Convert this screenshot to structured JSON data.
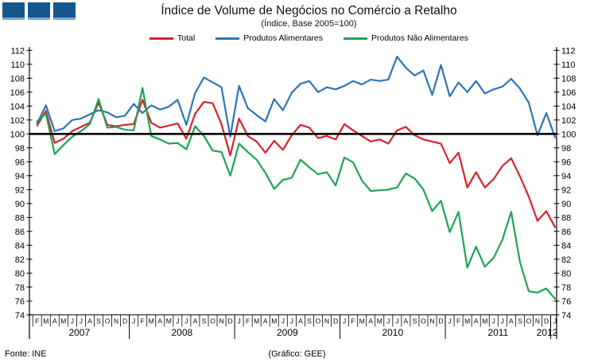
{
  "logo": {
    "color": "#15568d",
    "accent": "#7fa8cb"
  },
  "chart_data": {
    "type": "line",
    "title": "Índice de Volume de Negócios no Comércio a Retalho",
    "subtitle": "(Índice, Base 2005=100)",
    "baseline": 100,
    "ylim": [
      74,
      112
    ],
    "ytick_step": 2,
    "grid": false,
    "legend_position": "top",
    "x_unit": "month",
    "categories": [
      "F",
      "M",
      "A",
      "M",
      "J",
      "J",
      "A",
      "S",
      "O",
      "N",
      "D",
      "J",
      "F",
      "M",
      "A",
      "M",
      "J",
      "J",
      "A",
      "S",
      "O",
      "N",
      "D",
      "J",
      "F",
      "M",
      "A",
      "M",
      "J",
      "J",
      "A",
      "S",
      "O",
      "N",
      "D",
      "J",
      "F",
      "M",
      "A",
      "M",
      "J",
      "J",
      "A",
      "S",
      "O",
      "N",
      "D",
      "J",
      "F",
      "M",
      "A",
      "M",
      "J",
      "J",
      "A",
      "S",
      "O",
      "N",
      "D",
      "J"
    ],
    "years": [
      {
        "label": "2007",
        "start": 0,
        "count": 11
      },
      {
        "label": "2008",
        "start": 11,
        "count": 12
      },
      {
        "label": "2009",
        "start": 23,
        "count": 12
      },
      {
        "label": "2010",
        "start": 35,
        "count": 12
      },
      {
        "label": "2011",
        "start": 47,
        "count": 12
      },
      {
        "label": "2012",
        "start": 59,
        "count": 1
      }
    ],
    "series": [
      {
        "name": "Total",
        "color": "#d5232b",
        "values": [
          101.2,
          103.3,
          98.7,
          99.3,
          100.4,
          101.0,
          101.6,
          104.5,
          101.3,
          101.1,
          101.3,
          101.4,
          104.9,
          101.6,
          100.9,
          101.2,
          101.5,
          99.3,
          102.9,
          104.6,
          104.4,
          101.4,
          96.9,
          102.2,
          99.7,
          98.9,
          97.3,
          99.0,
          97.7,
          99.8,
          101.3,
          100.9,
          99.4,
          99.7,
          99.2,
          101.4,
          100.5,
          99.7,
          98.9,
          99.2,
          98.6,
          100.5,
          101.0,
          99.8,
          99.2,
          98.9,
          98.6,
          95.8,
          97.3,
          92.3,
          94.5,
          92.3,
          93.5,
          95.4,
          96.5,
          93.9,
          91.0,
          87.5,
          88.9,
          86.6
        ]
      },
      {
        "name": "Produtos Alimentares",
        "color": "#2e74b5",
        "values": [
          101.5,
          104.1,
          100.4,
          100.8,
          102.0,
          102.2,
          102.8,
          103.4,
          103.1,
          102.4,
          102.6,
          104.3,
          103.0,
          104.1,
          103.5,
          103.9,
          104.9,
          101.3,
          105.9,
          108.1,
          107.4,
          106.7,
          99.6,
          106.9,
          103.7,
          102.7,
          101.8,
          105.0,
          103.4,
          105.9,
          107.2,
          107.6,
          106.0,
          106.7,
          106.4,
          106.9,
          107.6,
          107.1,
          107.8,
          107.6,
          107.8,
          111.1,
          109.5,
          108.4,
          109.1,
          105.6,
          109.9,
          105.4,
          107.4,
          106.0,
          107.6,
          105.8,
          106.4,
          106.8,
          107.9,
          106.5,
          104.5,
          99.8,
          103.0,
          99.5
        ]
      },
      {
        "name": "Produtos Não Alimentares",
        "color": "#1da353",
        "values": [
          101.8,
          102.9,
          97.1,
          98.4,
          99.6,
          100.4,
          101.4,
          105.0,
          100.9,
          101.0,
          100.6,
          100.5,
          106.6,
          99.7,
          99.2,
          98.6,
          98.7,
          97.8,
          101.1,
          99.7,
          97.6,
          97.4,
          94.0,
          98.6,
          97.4,
          96.3,
          94.4,
          92.1,
          93.4,
          93.7,
          96.3,
          95.2,
          94.2,
          94.5,
          92.6,
          96.6,
          95.9,
          93.3,
          91.8,
          91.9,
          92.0,
          92.3,
          94.3,
          93.6,
          92.0,
          88.9,
          90.4,
          85.9,
          88.8,
          80.8,
          83.8,
          80.9,
          82.2,
          84.8,
          88.8,
          81.6,
          77.4,
          77.2,
          77.8,
          76.3
        ]
      }
    ]
  },
  "footer": {
    "source": "Fonte: INE",
    "credit": "(Gráfico: GEE)"
  }
}
